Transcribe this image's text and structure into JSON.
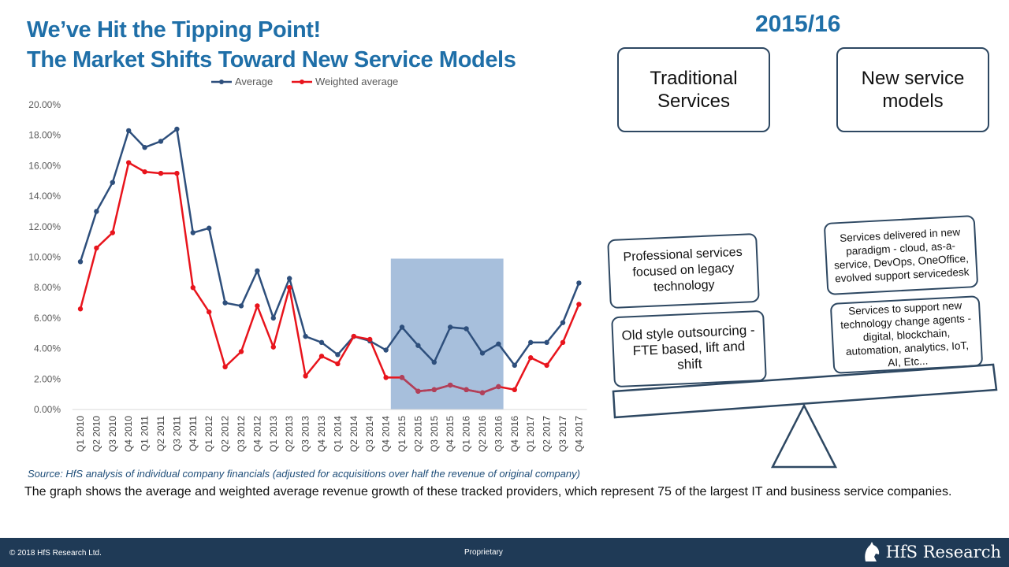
{
  "header": {
    "title_line1": "We’ve Hit the Tipping Point!",
    "title_line2": "The Market Shifts Toward New Service Models",
    "year": "2015/16"
  },
  "balance": {
    "left_header": "Traditional Services",
    "right_header": "New service models",
    "left_box_top": "Professional services focused on legacy technology",
    "left_box_bottom": "Old style outsourcing - FTE based, lift and shift",
    "right_box_top": "Services delivered in new paradigm - cloud, as-a-service, DevOps, OneOffice, evolved support servicedesk",
    "right_box_bottom": "Services to support new technology change agents - digital, blockchain, automation, analytics, IoT, AI, Etc..."
  },
  "source": "Source: HfS analysis of individual company financials (adjusted for acquisitions over half the revenue of original company)",
  "description": "The graph shows the average and weighted average revenue growth of these tracked providers, which represent 75 of the largest IT and business service companies.",
  "footer": {
    "copyright": "© 2018 HfS Research Ltd.",
    "proprietary": "Proprietary",
    "logo_text": "HfS Research"
  },
  "colors": {
    "average": "#2e4f7c",
    "weighted": "#e8141c",
    "highlight": "#a7bfdc",
    "title": "#1f6fa8"
  },
  "chart_data": {
    "type": "line",
    "categories": [
      "Q1 2010",
      "Q2 2010",
      "Q3 2010",
      "Q4 2010",
      "Q1 2011",
      "Q2 2011",
      "Q3 2011",
      "Q4 2011",
      "Q1 2012",
      "Q2 2012",
      "Q3 2012",
      "Q4 2012",
      "Q1 2013",
      "Q2 2013",
      "Q3 2013",
      "Q4 2013",
      "Q1 2014",
      "Q2 2014",
      "Q3 2014",
      "Q4 2014",
      "Q1 2015",
      "Q2 2015",
      "Q3 2015",
      "Q4 2015",
      "Q1 2016",
      "Q2 2016",
      "Q3 2016",
      "Q4 2016",
      "Q1 2017",
      "Q2 2017",
      "Q3 2017",
      "Q4 2017"
    ],
    "series": [
      {
        "name": "Average",
        "values": [
          9.7,
          13.0,
          14.9,
          18.3,
          17.2,
          17.6,
          18.4,
          11.6,
          11.9,
          7.0,
          6.8,
          9.1,
          6.0,
          8.6,
          4.8,
          4.4,
          3.6,
          4.8,
          4.5,
          3.9,
          5.4,
          4.2,
          3.1,
          5.4,
          5.3,
          3.7,
          4.3,
          2.9,
          4.4,
          4.4,
          5.7,
          8.3
        ]
      },
      {
        "name": "Weighted average",
        "values": [
          6.6,
          10.6,
          11.6,
          16.2,
          15.6,
          15.5,
          15.5,
          8.0,
          6.4,
          2.8,
          3.8,
          6.8,
          4.1,
          8.0,
          2.2,
          3.5,
          3.0,
          4.8,
          4.6,
          2.1,
          2.1,
          1.2,
          1.3,
          1.6,
          1.3,
          1.1,
          1.5,
          1.3,
          3.4,
          2.9,
          4.4,
          6.9
        ]
      }
    ],
    "highlight_range": [
      "Q1 2015",
      "Q3 2016"
    ],
    "ylim": [
      0,
      20
    ],
    "y_ticks": [
      "0.00%",
      "2.00%",
      "4.00%",
      "6.00%",
      "8.00%",
      "10.00%",
      "12.00%",
      "14.00%",
      "16.00%",
      "18.00%",
      "20.00%"
    ],
    "legend_position": "top",
    "grid": false
  }
}
